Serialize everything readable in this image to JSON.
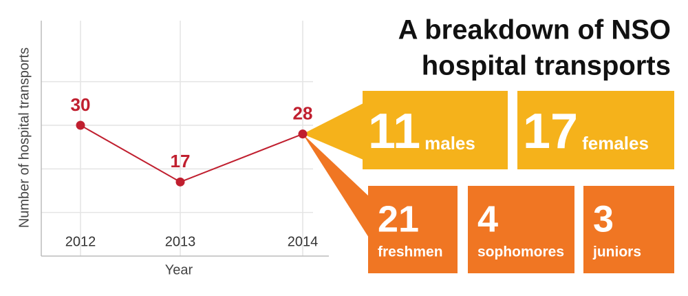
{
  "chart_data": {
    "type": "line",
    "title_lines": [
      "A breakdown of NSO",
      "hospital transports"
    ],
    "x_label": "Year",
    "y_label": "Number of hospital transports",
    "categories": [
      "2012",
      "2013",
      "2014"
    ],
    "values": [
      30,
      17,
      28
    ],
    "color": "#c01f2f",
    "ylim": [
      0,
      54
    ],
    "ygrid": [
      10,
      20,
      30,
      40
    ],
    "grid": true
  },
  "breakdown": {
    "gender": {
      "color": "#f5b21b",
      "items": [
        {
          "value": 11,
          "label": "males"
        },
        {
          "value": 17,
          "label": "females"
        }
      ]
    },
    "class": {
      "color": "#f07623",
      "items": [
        {
          "value": 21,
          "label": "freshmen"
        },
        {
          "value": 4,
          "label": "sophomores"
        },
        {
          "value": 3,
          "label": "juniors"
        }
      ]
    }
  }
}
